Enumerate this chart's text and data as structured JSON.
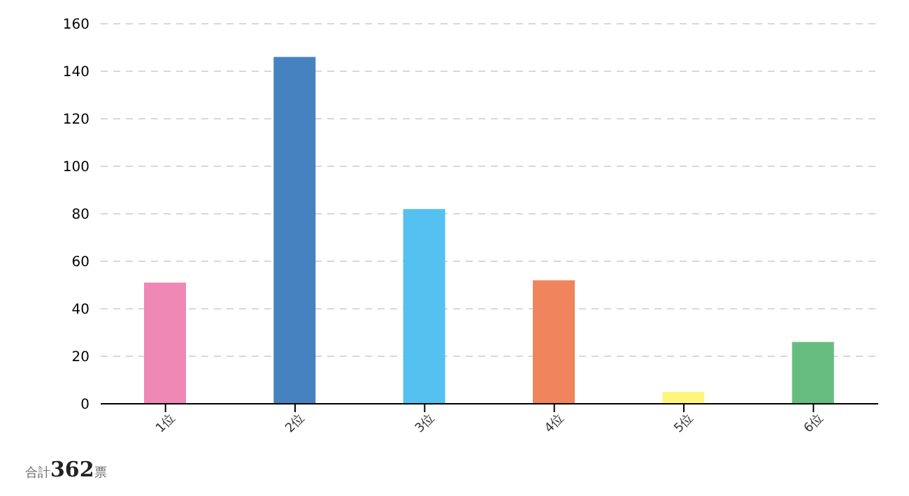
{
  "chart_data": {
    "type": "bar",
    "categories": [
      "1位",
      "2位",
      "3位",
      "4位",
      "5位",
      "6位"
    ],
    "values": [
      51,
      146,
      82,
      52,
      5,
      26
    ],
    "colors": [
      "#ef88b4",
      "#4782c0",
      "#55c1f1",
      "#ef845d",
      "#fff57a",
      "#67bd80"
    ],
    "ylim": [
      0,
      160
    ],
    "yticks": [
      0,
      20,
      40,
      60,
      80,
      100,
      120,
      140,
      160
    ],
    "grid": "y",
    "annotations": [
      "合計362票"
    ]
  }
}
